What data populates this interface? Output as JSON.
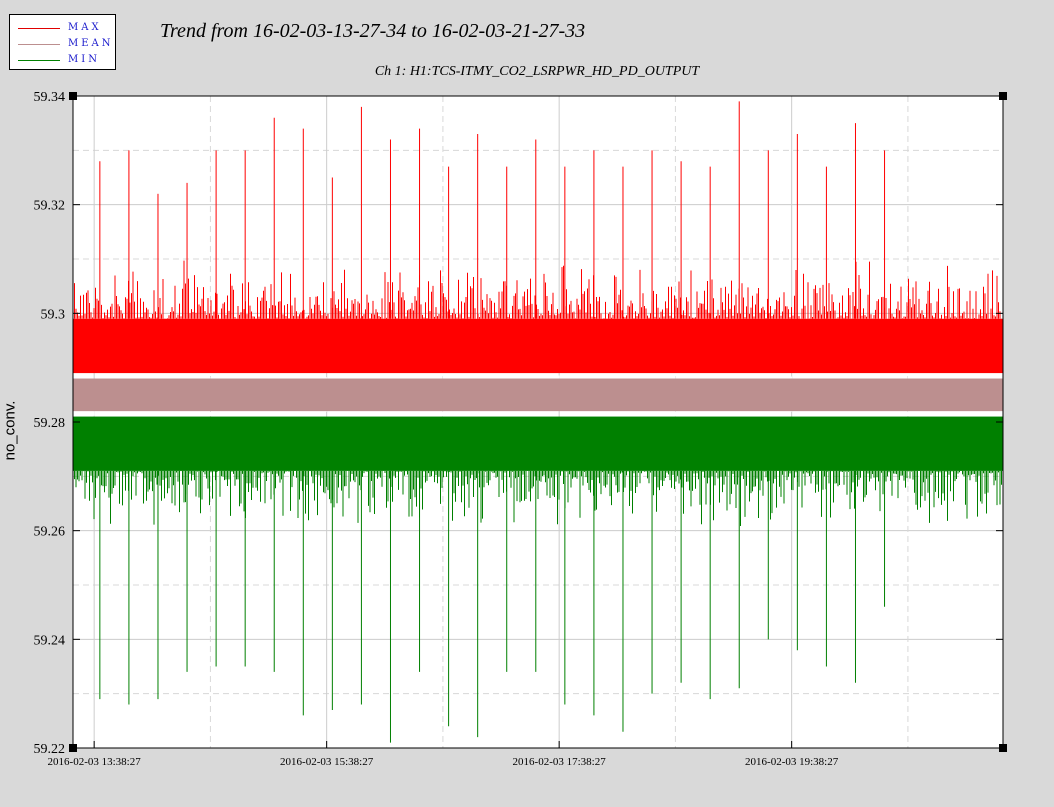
{
  "legend": {
    "items": [
      {
        "label": "MAX",
        "color": "#e00000"
      },
      {
        "label": "MEAN",
        "color": "#bc8f8f"
      },
      {
        "label": "MIN",
        "color": "#008000"
      }
    ]
  },
  "chart_data": {
    "type": "line",
    "title": "Trend from 16-02-03-13-27-34 to 16-02-03-21-27-33",
    "subtitle": "Ch 1: H1:TCS-ITMY_CO2_LSRPWR_HD_PD_OUTPUT",
    "xlabel": "",
    "ylabel": "no_conv.",
    "xlim_hours": [
      13.459,
      21.459
    ],
    "ylim": [
      59.22,
      59.34
    ],
    "yticks": [
      59.22,
      59.24,
      59.26,
      59.28,
      59.3,
      59.32,
      59.34
    ],
    "ytick_labels": [
      "59.22",
      "59.24",
      "59.26",
      "59.28",
      "59.3",
      "59.32",
      "59.34"
    ],
    "xticks_hours": [
      13.641,
      15.641,
      17.641,
      19.641
    ],
    "xtick_labels": [
      "2016-02-03 13:38:27",
      "2016-02-03 15:38:27",
      "2016-02-03 17:38:27",
      "2016-02-03 19:38:27"
    ],
    "grid": true,
    "series": [
      {
        "name": "MAX",
        "color": "#ff0000",
        "band": [
          59.289,
          59.299
        ],
        "noise_peak": 59.306,
        "spike_hours": [
          13.69,
          13.94,
          14.19,
          14.44,
          14.69,
          14.94,
          15.19,
          15.44,
          15.69,
          15.94,
          16.19,
          16.44,
          16.69,
          16.94,
          17.19,
          17.44,
          17.69,
          17.94,
          18.19,
          18.44,
          18.69,
          18.94,
          19.19,
          19.44,
          19.69,
          19.94,
          20.19,
          20.44
        ],
        "spike_values": [
          59.328,
          59.33,
          59.322,
          59.324,
          59.33,
          59.33,
          59.336,
          59.334,
          59.325,
          59.338,
          59.332,
          59.334,
          59.327,
          59.333,
          59.327,
          59.332,
          59.327,
          59.33,
          59.327,
          59.33,
          59.328,
          59.327,
          59.339,
          59.33,
          59.333,
          59.327,
          59.335,
          59.33
        ]
      },
      {
        "name": "MEAN",
        "color": "#bc8f8f",
        "band": [
          59.282,
          59.288
        ],
        "noise_peak": 59.291
      },
      {
        "name": "MIN",
        "color": "#008000",
        "band": [
          59.271,
          59.281
        ],
        "noise_peak": 59.264,
        "spike_hours": [
          13.69,
          13.94,
          14.19,
          14.44,
          14.69,
          14.94,
          15.19,
          15.44,
          15.69,
          15.94,
          16.19,
          16.44,
          16.69,
          16.94,
          17.19,
          17.44,
          17.69,
          17.94,
          18.19,
          18.44,
          18.69,
          18.94,
          19.19,
          19.44,
          19.69,
          19.94,
          20.19,
          20.44
        ],
        "spike_values": [
          59.229,
          59.228,
          59.229,
          59.234,
          59.235,
          59.235,
          59.234,
          59.226,
          59.227,
          59.228,
          59.221,
          59.234,
          59.224,
          59.222,
          59.234,
          59.234,
          59.228,
          59.226,
          59.223,
          59.23,
          59.232,
          59.229,
          59.231,
          59.24,
          59.238,
          59.235,
          59.232,
          59.246
        ]
      }
    ]
  }
}
